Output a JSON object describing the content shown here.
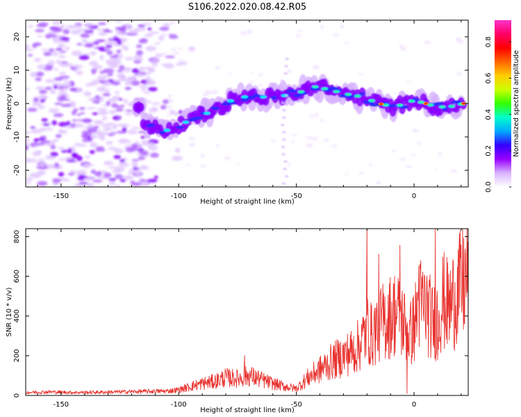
{
  "figure": {
    "title": "S106.2022.020.08.42.R05"
  },
  "chart_data": [
    {
      "type": "heatmap",
      "xlabel": "Height of straight line (km)",
      "ylabel": "Frequency (Hz)",
      "xlim": [
        -165,
        23
      ],
      "ylim": [
        -25,
        25
      ],
      "x_ticks": [
        "-150",
        "-100",
        "-50",
        "0"
      ],
      "y_ticks": [
        "20",
        "10",
        "0",
        "-10",
        "-20"
      ],
      "colorbar": {
        "label": "Normalized spectral amplitude",
        "range": [
          0,
          0.92
        ],
        "ticks": [
          "0.0",
          "0.2",
          "0.4",
          "0.6",
          "0.8"
        ],
        "colors": [
          "#ffffff",
          "#d9b3ff",
          "#9900ff",
          "#3300ff",
          "#00aaff",
          "#00ffcc",
          "#33ff00",
          "#ccff00",
          "#ffcc00",
          "#ff6600",
          "#ff0000",
          "#ff0066",
          "#ff33cc"
        ]
      },
      "ridge": {
        "x": [
          -115,
          -105,
          -95,
          -85,
          -75,
          -65,
          -58,
          -50,
          -42,
          -35,
          -30,
          -22,
          -15,
          -8,
          0,
          5,
          10,
          15,
          21
        ],
        "y": [
          -7,
          -8,
          -5,
          -2,
          2,
          2,
          2,
          3,
          5,
          4,
          3,
          2,
          0,
          -1,
          1,
          0,
          -1,
          -1,
          0
        ]
      },
      "grid": false
    },
    {
      "type": "line",
      "xlabel": "Height of straight line (km)",
      "ylabel": "SNR (10 * v/v)",
      "xlim": [
        -165,
        23
      ],
      "ylim": [
        0,
        840
      ],
      "x_ticks": [
        "-150",
        "-100",
        "-50",
        "0"
      ],
      "y_ticks": [
        "0",
        "200",
        "400",
        "600",
        "800"
      ],
      "series": [
        {
          "color": "#e8322e",
          "x": [
            -165,
            -155,
            -145,
            -135,
            -125,
            -115,
            -105,
            -100,
            -95,
            -90,
            -85,
            -80,
            -75,
            -70,
            -65,
            -60,
            -55,
            -50,
            -45,
            -40,
            -35,
            -30,
            -25,
            -22,
            -20,
            -18,
            -15,
            -12,
            -10,
            -8,
            -5,
            -2,
            0,
            2,
            5,
            8,
            10,
            12,
            15,
            18,
            20,
            22
          ],
          "y": [
            15,
            18,
            15,
            16,
            18,
            20,
            22,
            28,
            45,
            60,
            70,
            90,
            85,
            100,
            80,
            60,
            45,
            35,
            90,
            130,
            170,
            200,
            230,
            280,
            340,
            300,
            360,
            380,
            400,
            420,
            380,
            300,
            350,
            460,
            450,
            360,
            400,
            480,
            440,
            520,
            540,
            590
          ],
          "peaks": [
            {
              "x": -72,
              "y": 200
            },
            {
              "x": -20,
              "y": 840
            },
            {
              "x": -15,
              "y": 710
            },
            {
              "x": -6,
              "y": 755
            },
            {
              "x": 2,
              "y": 650
            },
            {
              "x": 9,
              "y": 840
            },
            {
              "x": 19,
              "y": 660
            }
          ],
          "dips": [
            {
              "x": -3,
              "y": 10
            },
            {
              "x": 10,
              "y": 180
            }
          ]
        }
      ],
      "grid": false
    }
  ]
}
